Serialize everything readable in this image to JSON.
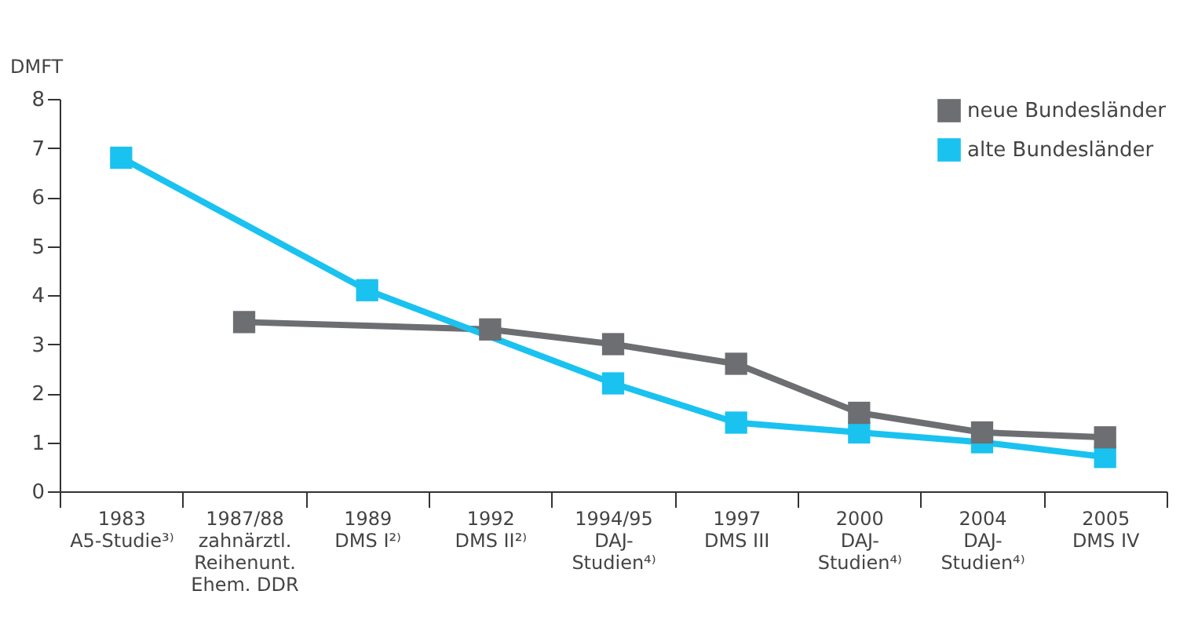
{
  "chart_data": {
    "type": "line",
    "ylabel": "DMFT",
    "categories": [
      "1983\nA5-Studie³⁾",
      "1987/88\nzahnärztl.\nReihenunt.\nEhem. DDR",
      "1989\nDMS I²⁾",
      "1992\nDMS II²⁾",
      "1994/95\nDAJ-\nStudien⁴⁾",
      "1997\nDMS III",
      "2000\nDAJ-\nStudien⁴⁾",
      "2004\nDAJ-\nStudien⁴⁾",
      "2005\nDMS IV"
    ],
    "series": [
      {
        "name": "neue Bundesländer",
        "color": "#6d6e71",
        "values": [
          null,
          3.45,
          null,
          3.3,
          3.0,
          2.6,
          1.6,
          1.2,
          1.1
        ]
      },
      {
        "name": "alte Bundesländer",
        "color": "#1ac2f0",
        "values": [
          6.8,
          null,
          4.1,
          null,
          2.2,
          1.4,
          1.2,
          1.0,
          0.7
        ]
      }
    ],
    "ylim": [
      0,
      8
    ],
    "yticks": [
      0,
      1,
      2,
      3,
      4,
      5,
      6,
      7,
      8
    ],
    "grid": false,
    "legend": "top right",
    "marker": "square",
    "line_style": "solid"
  }
}
